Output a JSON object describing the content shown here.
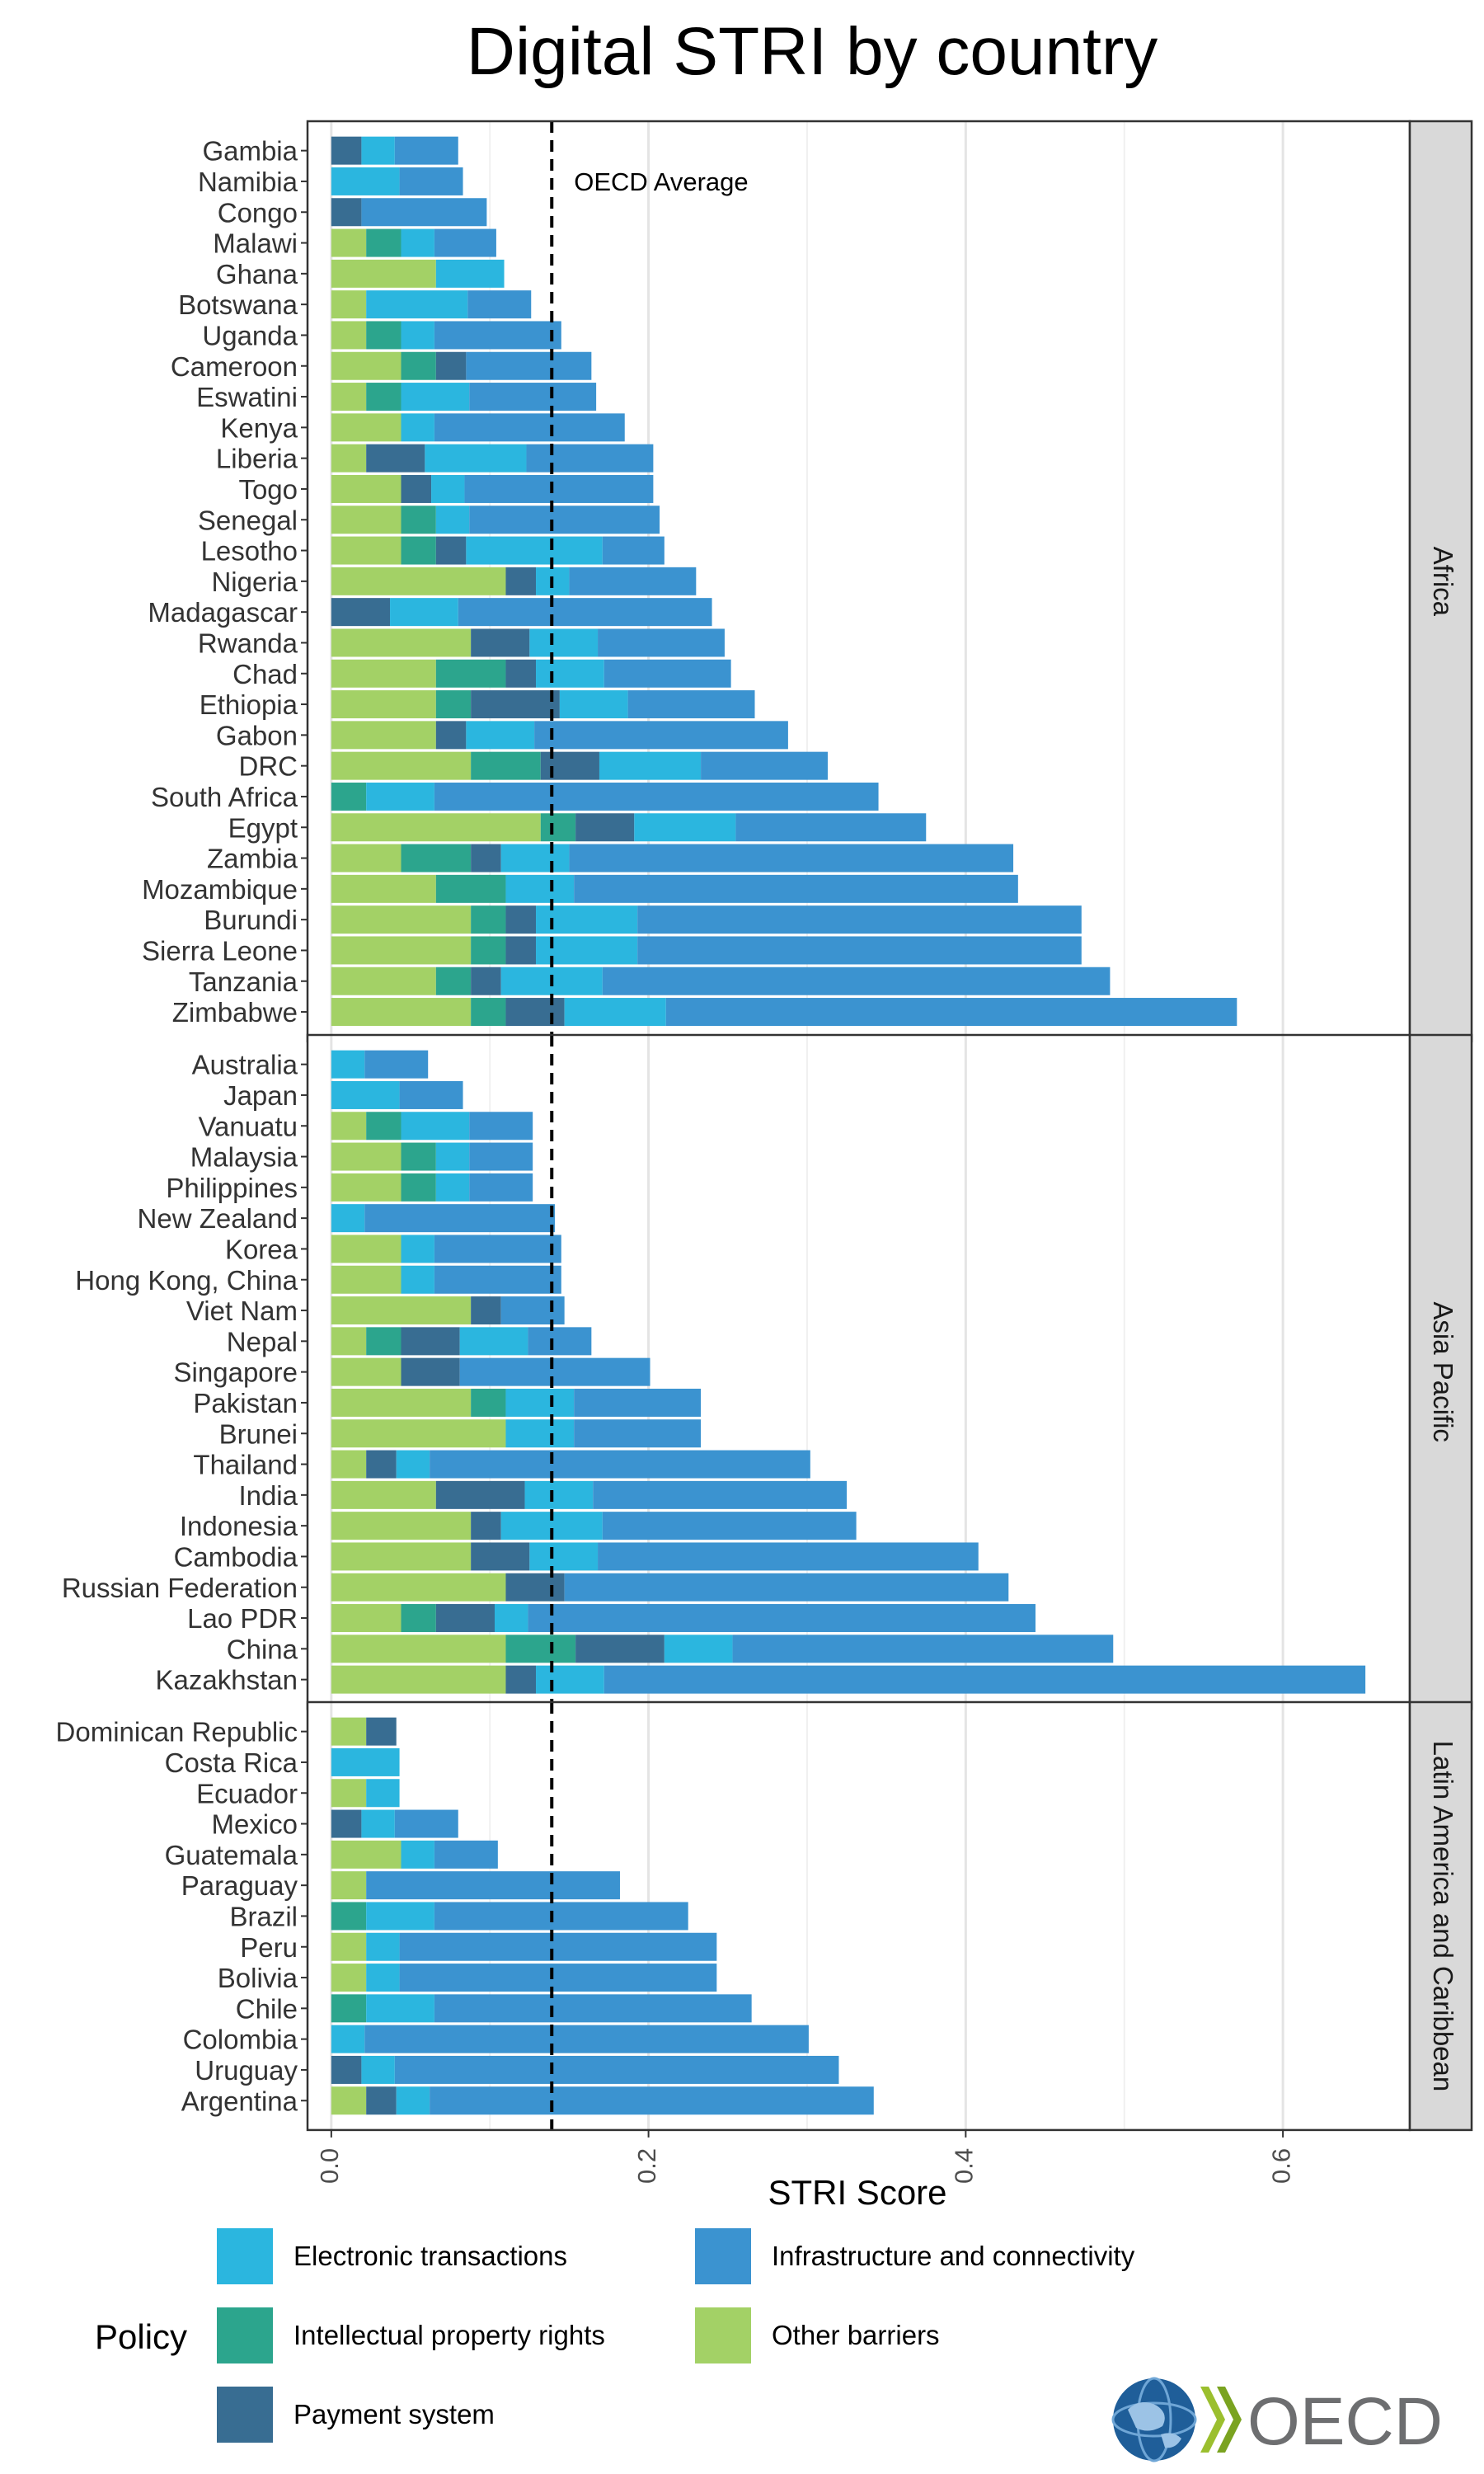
{
  "chart_data": {
    "type": "bar",
    "stacked": true,
    "orientation": "horizontal",
    "title": "Digital STRI by country",
    "xlabel": "STRI Score",
    "ylabel": "",
    "xlim": [
      -0.015,
      0.68
    ],
    "x_ticks": [
      "0.0",
      "0.2",
      "0.4",
      "0.6"
    ],
    "x_tick_values": [
      0.0,
      0.2,
      0.4,
      0.6
    ],
    "grid": true,
    "reference_line": {
      "value": 0.139,
      "label": "OECD Average"
    },
    "legend": {
      "title": "Policy",
      "placement": "bottom",
      "items": [
        {
          "key": "et",
          "name": "Electronic transactions",
          "color": "#2BB6DF"
        },
        {
          "key": "ic",
          "name": "Infrastructure and connectivity",
          "color": "#3B93D0"
        },
        {
          "key": "ip",
          "name": "Intellectual property rights",
          "color": "#2CA58D"
        },
        {
          "key": "ob",
          "name": "Other barriers",
          "color": "#A3D166"
        },
        {
          "key": "ps",
          "name": "Payment system",
          "color": "#386D92"
        }
      ]
    },
    "stack_order": [
      "ob",
      "ip",
      "ps",
      "et",
      "ic"
    ],
    "panels": [
      {
        "name": "Africa",
        "rows": [
          {
            "country": "Gambia",
            "ob": 0,
            "ip": 0,
            "ps": 0.019,
            "et": 0.021,
            "ic": 0.04
          },
          {
            "country": "Namibia",
            "ob": 0,
            "ip": 0,
            "ps": 0,
            "et": 0.043,
            "ic": 0.04
          },
          {
            "country": "Congo",
            "ob": 0,
            "ip": 0,
            "ps": 0.019,
            "et": 0,
            "ic": 0.079
          },
          {
            "country": "Malawi",
            "ob": 0.022,
            "ip": 0.022,
            "ps": 0,
            "et": 0.021,
            "ic": 0.039
          },
          {
            "country": "Ghana",
            "ob": 0.066,
            "ip": 0,
            "ps": 0,
            "et": 0.043,
            "ic": 0
          },
          {
            "country": "Botswana",
            "ob": 0.022,
            "ip": 0,
            "ps": 0,
            "et": 0.064,
            "ic": 0.04
          },
          {
            "country": "Uganda",
            "ob": 0.022,
            "ip": 0.022,
            "ps": 0,
            "et": 0.021,
            "ic": 0.08
          },
          {
            "country": "Cameroon",
            "ob": 0.044,
            "ip": 0.022,
            "ps": 0.019,
            "et": 0,
            "ic": 0.079
          },
          {
            "country": "Eswatini",
            "ob": 0.022,
            "ip": 0.022,
            "ps": 0,
            "et": 0.043,
            "ic": 0.08
          },
          {
            "country": "Kenya",
            "ob": 0.044,
            "ip": 0,
            "ps": 0,
            "et": 0.021,
            "ic": 0.12
          },
          {
            "country": "Liberia",
            "ob": 0.022,
            "ip": 0,
            "ps": 0.037,
            "et": 0.064,
            "ic": 0.08
          },
          {
            "country": "Togo",
            "ob": 0.044,
            "ip": 0,
            "ps": 0.019,
            "et": 0.021,
            "ic": 0.119
          },
          {
            "country": "Senegal",
            "ob": 0.044,
            "ip": 0.022,
            "ps": 0,
            "et": 0.021,
            "ic": 0.12
          },
          {
            "country": "Lesotho",
            "ob": 0.044,
            "ip": 0.022,
            "ps": 0.019,
            "et": 0.086,
            "ic": 0.039
          },
          {
            "country": "Nigeria",
            "ob": 0.11,
            "ip": 0,
            "ps": 0.019,
            "et": 0.021,
            "ic": 0.08
          },
          {
            "country": "Madagascar",
            "ob": 0,
            "ip": 0,
            "ps": 0.037,
            "et": 0.043,
            "ic": 0.16
          },
          {
            "country": "Rwanda",
            "ob": 0.088,
            "ip": 0,
            "ps": 0.037,
            "et": 0.043,
            "ic": 0.08
          },
          {
            "country": "Chad",
            "ob": 0.066,
            "ip": 0.044,
            "ps": 0.019,
            "et": 0.043,
            "ic": 0.08
          },
          {
            "country": "Ethiopia",
            "ob": 0.066,
            "ip": 0.022,
            "ps": 0.056,
            "et": 0.043,
            "ic": 0.08
          },
          {
            "country": "Gabon",
            "ob": 0.066,
            "ip": 0,
            "ps": 0.019,
            "et": 0.043,
            "ic": 0.16
          },
          {
            "country": "DRC",
            "ob": 0.088,
            "ip": 0.044,
            "ps": 0.037,
            "et": 0.064,
            "ic": 0.08
          },
          {
            "country": "South Africa",
            "ob": 0,
            "ip": 0.022,
            "ps": 0,
            "et": 0.043,
            "ic": 0.28
          },
          {
            "country": "Egypt",
            "ob": 0.132,
            "ip": 0.022,
            "ps": 0.037,
            "et": 0.064,
            "ic": 0.12
          },
          {
            "country": "Zambia",
            "ob": 0.044,
            "ip": 0.044,
            "ps": 0.019,
            "et": 0.043,
            "ic": 0.28
          },
          {
            "country": "Mozambique",
            "ob": 0.066,
            "ip": 0.044,
            "ps": 0,
            "et": 0.043,
            "ic": 0.28
          },
          {
            "country": "Burundi",
            "ob": 0.088,
            "ip": 0.022,
            "ps": 0.019,
            "et": 0.064,
            "ic": 0.28
          },
          {
            "country": "Sierra Leone",
            "ob": 0.088,
            "ip": 0.022,
            "ps": 0.019,
            "et": 0.064,
            "ic": 0.28
          },
          {
            "country": "Tanzania",
            "ob": 0.066,
            "ip": 0.022,
            "ps": 0.019,
            "et": 0.064,
            "ic": 0.32
          },
          {
            "country": "Zimbabwe",
            "ob": 0.088,
            "ip": 0.022,
            "ps": 0.037,
            "et": 0.064,
            "ic": 0.36
          }
        ]
      },
      {
        "name": "Asia Pacific",
        "rows": [
          {
            "country": "Australia",
            "ob": 0,
            "ip": 0,
            "ps": 0,
            "et": 0.021,
            "ic": 0.04
          },
          {
            "country": "Japan",
            "ob": 0,
            "ip": 0,
            "ps": 0,
            "et": 0.043,
            "ic": 0.04
          },
          {
            "country": "Vanuatu",
            "ob": 0.022,
            "ip": 0.022,
            "ps": 0,
            "et": 0.043,
            "ic": 0.04
          },
          {
            "country": "Malaysia",
            "ob": 0.044,
            "ip": 0.022,
            "ps": 0,
            "et": 0.021,
            "ic": 0.04
          },
          {
            "country": "Philippines",
            "ob": 0.044,
            "ip": 0.022,
            "ps": 0,
            "et": 0.021,
            "ic": 0.04
          },
          {
            "country": "New Zealand",
            "ob": 0,
            "ip": 0,
            "ps": 0,
            "et": 0.021,
            "ic": 0.12
          },
          {
            "country": "Korea",
            "ob": 0.044,
            "ip": 0,
            "ps": 0,
            "et": 0.021,
            "ic": 0.08
          },
          {
            "country": "Hong Kong, China",
            "ob": 0.044,
            "ip": 0,
            "ps": 0,
            "et": 0.021,
            "ic": 0.08
          },
          {
            "country": "Viet Nam",
            "ob": 0.088,
            "ip": 0,
            "ps": 0.019,
            "et": 0,
            "ic": 0.04
          },
          {
            "country": "Nepal",
            "ob": 0.022,
            "ip": 0.022,
            "ps": 0.037,
            "et": 0.043,
            "ic": 0.04
          },
          {
            "country": "Singapore",
            "ob": 0.044,
            "ip": 0,
            "ps": 0.037,
            "et": 0,
            "ic": 0.12
          },
          {
            "country": "Pakistan",
            "ob": 0.088,
            "ip": 0.022,
            "ps": 0,
            "et": 0.043,
            "ic": 0.08
          },
          {
            "country": "Brunei",
            "ob": 0.11,
            "ip": 0,
            "ps": 0,
            "et": 0.043,
            "ic": 0.08
          },
          {
            "country": "Thailand",
            "ob": 0.022,
            "ip": 0,
            "ps": 0.019,
            "et": 0.021,
            "ic": 0.24
          },
          {
            "country": "India",
            "ob": 0.066,
            "ip": 0,
            "ps": 0.056,
            "et": 0.043,
            "ic": 0.16
          },
          {
            "country": "Indonesia",
            "ob": 0.088,
            "ip": 0,
            "ps": 0.019,
            "et": 0.064,
            "ic": 0.16
          },
          {
            "country": "Cambodia",
            "ob": 0.088,
            "ip": 0,
            "ps": 0.037,
            "et": 0.043,
            "ic": 0.24
          },
          {
            "country": "Russian Federation",
            "ob": 0.11,
            "ip": 0,
            "ps": 0.037,
            "et": 0,
            "ic": 0.28
          },
          {
            "country": "Lao PDR",
            "ob": 0.044,
            "ip": 0.022,
            "ps": 0.037,
            "et": 0.021,
            "ic": 0.32
          },
          {
            "country": "China",
            "ob": 0.11,
            "ip": 0.044,
            "ps": 0.056,
            "et": 0.043,
            "ic": 0.24
          },
          {
            "country": "Kazakhstan",
            "ob": 0.11,
            "ip": 0,
            "ps": 0.019,
            "et": 0.043,
            "ic": 0.48
          }
        ]
      },
      {
        "name": "Latin America and Caribbean",
        "rows": [
          {
            "country": "Dominican Republic",
            "ob": 0.022,
            "ip": 0,
            "ps": 0.019,
            "et": 0,
            "ic": 0
          },
          {
            "country": "Costa Rica",
            "ob": 0,
            "ip": 0,
            "ps": 0,
            "et": 0.043,
            "ic": 0
          },
          {
            "country": "Ecuador",
            "ob": 0.022,
            "ip": 0,
            "ps": 0,
            "et": 0.021,
            "ic": 0
          },
          {
            "country": "Mexico",
            "ob": 0,
            "ip": 0,
            "ps": 0.019,
            "et": 0.021,
            "ic": 0.04
          },
          {
            "country": "Guatemala",
            "ob": 0.044,
            "ip": 0,
            "ps": 0,
            "et": 0.021,
            "ic": 0.04
          },
          {
            "country": "Paraguay",
            "ob": 0.022,
            "ip": 0,
            "ps": 0,
            "et": 0,
            "ic": 0.16
          },
          {
            "country": "Brazil",
            "ob": 0,
            "ip": 0.022,
            "ps": 0,
            "et": 0.043,
            "ic": 0.16
          },
          {
            "country": "Peru",
            "ob": 0.022,
            "ip": 0,
            "ps": 0,
            "et": 0.021,
            "ic": 0.2
          },
          {
            "country": "Bolivia",
            "ob": 0.022,
            "ip": 0,
            "ps": 0,
            "et": 0.021,
            "ic": 0.2
          },
          {
            "country": "Chile",
            "ob": 0,
            "ip": 0.022,
            "ps": 0,
            "et": 0.043,
            "ic": 0.2
          },
          {
            "country": "Colombia",
            "ob": 0,
            "ip": 0,
            "ps": 0,
            "et": 0.021,
            "ic": 0.28
          },
          {
            "country": "Uruguay",
            "ob": 0,
            "ip": 0,
            "ps": 0.019,
            "et": 0.021,
            "ic": 0.28
          },
          {
            "country": "Argentina",
            "ob": 0.022,
            "ip": 0,
            "ps": 0.019,
            "et": 0.021,
            "ic": 0.28
          }
        ]
      }
    ]
  },
  "footer": {
    "logo_text": "OECD",
    "logo_globe_icon": "globe-icon",
    "logo_chevron_icon": "chevron-icon"
  }
}
